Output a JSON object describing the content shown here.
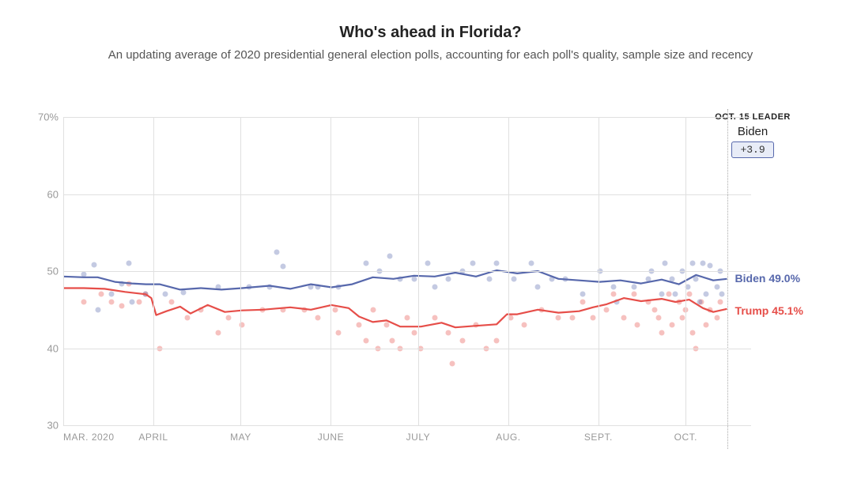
{
  "title": "Who's ahead in Florida?",
  "subtitle": "An updating average of 2020 presidential general election polls, accounting for each poll's quality, sample size and recency",
  "title_fontsize": 20,
  "subtitle_fontsize": 15,
  "chart": {
    "type": "line-with-scatter",
    "ylim": [
      30,
      70
    ],
    "yticks": [
      30,
      40,
      50,
      60,
      70
    ],
    "ytick_labels": [
      "30",
      "40",
      "50",
      "60",
      "70%"
    ],
    "x_months": [
      "MAR. 2020",
      "APRIL",
      "MAY",
      "JUNE",
      "JULY",
      "AUG.",
      "SEPT.",
      "OCT."
    ],
    "x_positions": [
      0,
      0.131,
      0.258,
      0.389,
      0.516,
      0.647,
      0.778,
      0.905
    ],
    "today_x": 0.965,
    "grid_color": "#e0e0e0",
    "axis_label_color": "#999999",
    "background_color": "#ffffff",
    "series": {
      "biden": {
        "name": "Biden",
        "color": "#5768ac",
        "line_width": 2.2,
        "final_value": 49.0,
        "label": "Biden 49.0%",
        "line": [
          [
            0.0,
            49.3
          ],
          [
            0.03,
            49.2
          ],
          [
            0.05,
            49.2
          ],
          [
            0.075,
            48.6
          ],
          [
            0.1,
            48.4
          ],
          [
            0.12,
            48.3
          ],
          [
            0.14,
            48.3
          ],
          [
            0.17,
            47.6
          ],
          [
            0.2,
            47.8
          ],
          [
            0.23,
            47.6
          ],
          [
            0.26,
            47.8
          ],
          [
            0.3,
            48.1
          ],
          [
            0.33,
            47.7
          ],
          [
            0.36,
            48.3
          ],
          [
            0.39,
            47.9
          ],
          [
            0.42,
            48.3
          ],
          [
            0.45,
            49.2
          ],
          [
            0.48,
            49.0
          ],
          [
            0.51,
            49.4
          ],
          [
            0.54,
            49.3
          ],
          [
            0.57,
            49.8
          ],
          [
            0.6,
            49.3
          ],
          [
            0.63,
            50.1
          ],
          [
            0.66,
            49.7
          ],
          [
            0.69,
            50.0
          ],
          [
            0.72,
            49.0
          ],
          [
            0.75,
            48.8
          ],
          [
            0.78,
            48.6
          ],
          [
            0.81,
            48.8
          ],
          [
            0.84,
            48.4
          ],
          [
            0.87,
            48.9
          ],
          [
            0.895,
            48.3
          ],
          [
            0.92,
            49.5
          ],
          [
            0.945,
            48.8
          ],
          [
            0.965,
            49.0
          ]
        ],
        "dots": [
          [
            0.03,
            49.6
          ],
          [
            0.045,
            50.8
          ],
          [
            0.05,
            45.0
          ],
          [
            0.07,
            47.0
          ],
          [
            0.085,
            48.4
          ],
          [
            0.095,
            51.0
          ],
          [
            0.1,
            46.0
          ],
          [
            0.12,
            47.0
          ],
          [
            0.148,
            47.0
          ],
          [
            0.175,
            47.2
          ],
          [
            0.225,
            48.0
          ],
          [
            0.27,
            48.0
          ],
          [
            0.3,
            48.0
          ],
          [
            0.31,
            52.5
          ],
          [
            0.32,
            50.6
          ],
          [
            0.36,
            48.0
          ],
          [
            0.37,
            48.0
          ],
          [
            0.4,
            48.0
          ],
          [
            0.44,
            51.0
          ],
          [
            0.46,
            50.0
          ],
          [
            0.475,
            52.0
          ],
          [
            0.49,
            49.0
          ],
          [
            0.51,
            49.0
          ],
          [
            0.53,
            51.0
          ],
          [
            0.54,
            48.0
          ],
          [
            0.56,
            49.0
          ],
          [
            0.58,
            50.0
          ],
          [
            0.595,
            51.0
          ],
          [
            0.62,
            49.0
          ],
          [
            0.63,
            51.0
          ],
          [
            0.655,
            49.0
          ],
          [
            0.68,
            51.0
          ],
          [
            0.69,
            48.0
          ],
          [
            0.71,
            49.0
          ],
          [
            0.73,
            49.0
          ],
          [
            0.755,
            47.0
          ],
          [
            0.78,
            50.0
          ],
          [
            0.8,
            48.0
          ],
          [
            0.805,
            46.0
          ],
          [
            0.83,
            48.0
          ],
          [
            0.85,
            49.0
          ],
          [
            0.855,
            50.0
          ],
          [
            0.87,
            47.0
          ],
          [
            0.875,
            51.0
          ],
          [
            0.885,
            49.0
          ],
          [
            0.89,
            47.0
          ],
          [
            0.9,
            50.0
          ],
          [
            0.908,
            48.0
          ],
          [
            0.915,
            51.0
          ],
          [
            0.92,
            49.0
          ],
          [
            0.925,
            46.0
          ],
          [
            0.93,
            51.0
          ],
          [
            0.935,
            47.0
          ],
          [
            0.94,
            50.7
          ],
          [
            0.95,
            48.0
          ],
          [
            0.955,
            50.0
          ],
          [
            0.958,
            47.0
          ]
        ]
      },
      "trump": {
        "name": "Trump",
        "color": "#e64e49",
        "line_width": 2.2,
        "final_value": 45.1,
        "label": "Trump 45.1%",
        "line": [
          [
            0.0,
            47.8
          ],
          [
            0.03,
            47.8
          ],
          [
            0.06,
            47.7
          ],
          [
            0.09,
            47.3
          ],
          [
            0.12,
            47.0
          ],
          [
            0.128,
            46.5
          ],
          [
            0.135,
            44.3
          ],
          [
            0.15,
            44.8
          ],
          [
            0.17,
            45.4
          ],
          [
            0.185,
            44.5
          ],
          [
            0.21,
            45.6
          ],
          [
            0.235,
            44.7
          ],
          [
            0.26,
            44.9
          ],
          [
            0.29,
            45.0
          ],
          [
            0.33,
            45.3
          ],
          [
            0.36,
            45.0
          ],
          [
            0.39,
            45.6
          ],
          [
            0.415,
            45.2
          ],
          [
            0.43,
            44.1
          ],
          [
            0.45,
            43.4
          ],
          [
            0.47,
            43.6
          ],
          [
            0.49,
            42.8
          ],
          [
            0.52,
            42.8
          ],
          [
            0.55,
            43.3
          ],
          [
            0.57,
            42.7
          ],
          [
            0.6,
            42.9
          ],
          [
            0.63,
            43.1
          ],
          [
            0.645,
            44.4
          ],
          [
            0.66,
            44.4
          ],
          [
            0.69,
            45.0
          ],
          [
            0.72,
            44.6
          ],
          [
            0.75,
            44.8
          ],
          [
            0.77,
            45.3
          ],
          [
            0.79,
            45.7
          ],
          [
            0.815,
            46.5
          ],
          [
            0.84,
            46.1
          ],
          [
            0.87,
            46.4
          ],
          [
            0.89,
            46.0
          ],
          [
            0.91,
            46.3
          ],
          [
            0.93,
            45.2
          ],
          [
            0.945,
            44.7
          ],
          [
            0.965,
            45.1
          ]
        ],
        "dots": [
          [
            0.03,
            46.0
          ],
          [
            0.055,
            47.0
          ],
          [
            0.07,
            46.0
          ],
          [
            0.085,
            45.5
          ],
          [
            0.095,
            48.4
          ],
          [
            0.11,
            46.0
          ],
          [
            0.12,
            47.0
          ],
          [
            0.14,
            40.0
          ],
          [
            0.158,
            46.0
          ],
          [
            0.18,
            44.0
          ],
          [
            0.2,
            45.0
          ],
          [
            0.225,
            42.0
          ],
          [
            0.24,
            44.0
          ],
          [
            0.26,
            43.0
          ],
          [
            0.29,
            45.0
          ],
          [
            0.32,
            45.0
          ],
          [
            0.35,
            45.0
          ],
          [
            0.37,
            44.0
          ],
          [
            0.395,
            45.0
          ],
          [
            0.4,
            42.0
          ],
          [
            0.43,
            43.0
          ],
          [
            0.44,
            41.0
          ],
          [
            0.45,
            45.0
          ],
          [
            0.458,
            40.0
          ],
          [
            0.47,
            43.0
          ],
          [
            0.478,
            41.0
          ],
          [
            0.49,
            40.0
          ],
          [
            0.5,
            44.0
          ],
          [
            0.51,
            42.0
          ],
          [
            0.52,
            40.0
          ],
          [
            0.54,
            44.0
          ],
          [
            0.56,
            42.0
          ],
          [
            0.565,
            38.0
          ],
          [
            0.58,
            41.0
          ],
          [
            0.6,
            43.0
          ],
          [
            0.615,
            40.0
          ],
          [
            0.63,
            41.0
          ],
          [
            0.65,
            44.0
          ],
          [
            0.67,
            43.0
          ],
          [
            0.695,
            45.0
          ],
          [
            0.72,
            44.0
          ],
          [
            0.74,
            44.0
          ],
          [
            0.755,
            46.0
          ],
          [
            0.77,
            44.0
          ],
          [
            0.79,
            45.0
          ],
          [
            0.8,
            47.0
          ],
          [
            0.815,
            44.0
          ],
          [
            0.83,
            47.0
          ],
          [
            0.835,
            43.0
          ],
          [
            0.85,
            46.0
          ],
          [
            0.86,
            45.0
          ],
          [
            0.865,
            44.0
          ],
          [
            0.87,
            42.0
          ],
          [
            0.88,
            47.0
          ],
          [
            0.885,
            43.0
          ],
          [
            0.895,
            46.0
          ],
          [
            0.9,
            44.0
          ],
          [
            0.905,
            45.0
          ],
          [
            0.91,
            47.0
          ],
          [
            0.915,
            42.0
          ],
          [
            0.92,
            40.0
          ],
          [
            0.928,
            46.0
          ],
          [
            0.935,
            43.0
          ],
          [
            0.94,
            45.0
          ],
          [
            0.95,
            44.0
          ],
          [
            0.955,
            46.0
          ]
        ]
      }
    },
    "dot_radius": 3.5,
    "dot_opacity": 0.35,
    "leader": {
      "date_label": "OCT. 15 LEADER",
      "name": "Biden",
      "margin": "+3.9",
      "badge_bg": "#e8ecf7",
      "badge_border": "#5768ac",
      "badge_text": "#333333"
    }
  }
}
